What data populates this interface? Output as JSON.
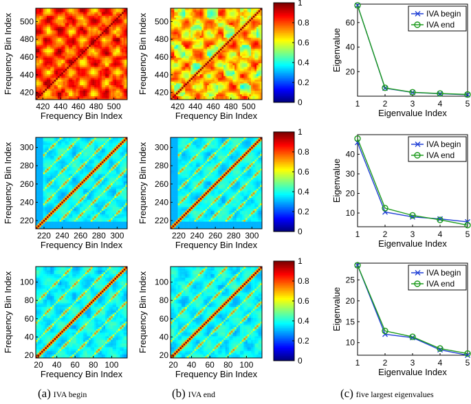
{
  "heatmap_common": {
    "xlabel": "Frequency Bin Index",
    "ylabel": "Frequency Bin Index",
    "colorbar_ticks": [
      "0",
      "0.2",
      "0.4",
      "0.6",
      "0.8",
      "1"
    ]
  },
  "heatmap_rows": [
    {
      "range": [
        412,
        515
      ],
      "ticks": [
        "420",
        "440",
        "460",
        "480",
        "500"
      ],
      "tick_values": [
        420,
        440,
        460,
        480,
        500
      ]
    },
    {
      "range": [
        211,
        311
      ],
      "ticks": [
        "220",
        "240",
        "260",
        "280",
        "300"
      ],
      "tick_values": [
        220,
        240,
        260,
        280,
        300
      ]
    },
    {
      "range": [
        17,
        117
      ],
      "ticks": [
        "20",
        "40",
        "60",
        "80",
        "100"
      ],
      "tick_values": [
        20,
        40,
        60,
        80,
        100
      ]
    }
  ],
  "captions": {
    "a": {
      "letter": "(a)",
      "text": "IVA begin"
    },
    "b": {
      "letter": "(b)",
      "text": "IVA end"
    },
    "c": {
      "letter": "(c)",
      "text": "five largest eigenvalues"
    }
  },
  "chart_data": [
    {
      "type": "line",
      "title": "",
      "xlabel": "Eigenvalue Index",
      "ylabel": "Eigenvalue",
      "x": [
        1,
        2,
        3,
        4,
        5
      ],
      "xlim": [
        1,
        5
      ],
      "ylim": [
        0,
        75
      ],
      "yticks": [
        0,
        20,
        40,
        60
      ],
      "ytick_labels": [
        "",
        "20",
        "40",
        "60"
      ],
      "series": [
        {
          "name": "IVA begin",
          "color": "#1f3fd6",
          "marker": "x",
          "values": [
            74,
            6.5,
            3.0,
            2.0,
            1.2
          ]
        },
        {
          "name": "IVA end",
          "color": "#1a9a1a",
          "marker": "o",
          "values": [
            74,
            6.8,
            3.2,
            2.2,
            1.4
          ]
        }
      ],
      "legend": "top-right"
    },
    {
      "type": "line",
      "title": "",
      "xlabel": "Eigenvalue Index",
      "ylabel": "Eigenvalue",
      "x": [
        1,
        2,
        3,
        4,
        5
      ],
      "xlim": [
        1,
        5
      ],
      "ylim": [
        3,
        50
      ],
      "yticks": [
        10,
        20,
        30,
        40
      ],
      "ytick_labels": [
        "10",
        "20",
        "30",
        "40"
      ],
      "series": [
        {
          "name": "IVA begin",
          "color": "#1f3fd6",
          "marker": "x",
          "values": [
            46,
            10.5,
            8.0,
            7.0,
            5.5
          ]
        },
        {
          "name": "IVA end",
          "color": "#1a9a1a",
          "marker": "o",
          "values": [
            48,
            12.5,
            8.8,
            6.5,
            3.8
          ]
        }
      ],
      "legend": "top-right"
    },
    {
      "type": "line",
      "title": "",
      "xlabel": "Eigenvalue Index",
      "ylabel": "Eigenvalue",
      "x": [
        1,
        2,
        3,
        4,
        5
      ],
      "xlim": [
        1,
        5
      ],
      "ylim": [
        7,
        29
      ],
      "yticks": [
        10,
        15,
        20,
        25
      ],
      "ytick_labels": [
        "10",
        "15",
        "20",
        "25"
      ],
      "series": [
        {
          "name": "IVA begin",
          "color": "#1f3fd6",
          "marker": "x",
          "values": [
            28.5,
            12.0,
            11.2,
            8.3,
            7.0
          ]
        },
        {
          "name": "IVA end",
          "color": "#1a9a1a",
          "marker": "o",
          "values": [
            28.5,
            12.8,
            11.4,
            8.6,
            7.4
          ]
        }
      ],
      "legend": "top-right"
    }
  ]
}
